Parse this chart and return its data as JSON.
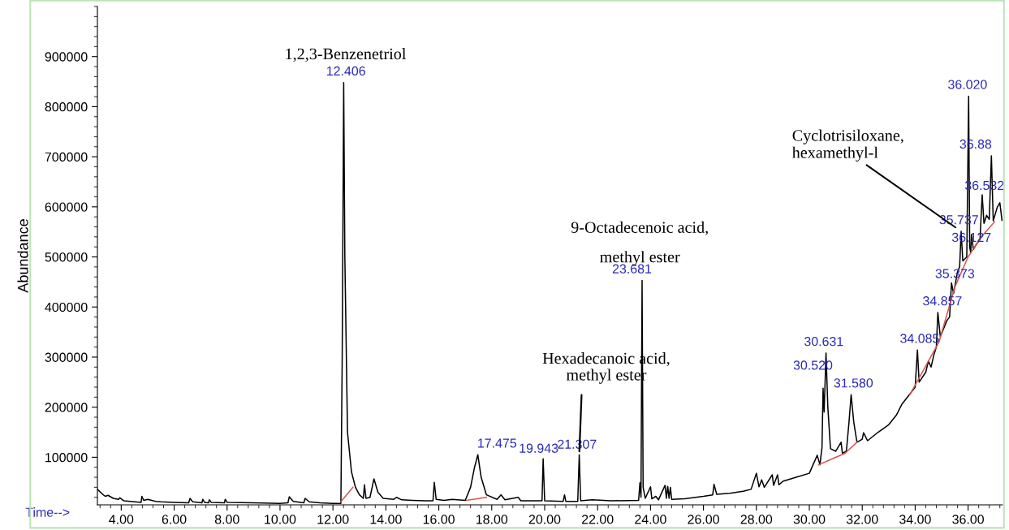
{
  "chart_data": {
    "type": "line",
    "xlabel": "Time-->",
    "ylabel": "Abundance",
    "xlim": [
      3.1,
      37.3
    ],
    "ylim": [
      5000,
      1000000
    ],
    "xticks": [
      {
        "value": 4,
        "label": "4.00"
      },
      {
        "value": 6,
        "label": "6.00"
      },
      {
        "value": 8,
        "label": "8.00"
      },
      {
        "value": 10,
        "label": "10.00"
      },
      {
        "value": 12,
        "label": "12.00"
      },
      {
        "value": 14,
        "label": "14.00"
      },
      {
        "value": 16,
        "label": "16.00"
      },
      {
        "value": 18,
        "label": "18.00"
      },
      {
        "value": 20,
        "label": "20.00"
      },
      {
        "value": 22,
        "label": "22.00"
      },
      {
        "value": 24,
        "label": "24.00"
      },
      {
        "value": 26,
        "label": "26.00"
      },
      {
        "value": 28,
        "label": "28.00"
      },
      {
        "value": 30,
        "label": "30.00"
      },
      {
        "value": 32,
        "label": "32.00"
      },
      {
        "value": 34,
        "label": "34.00"
      },
      {
        "value": 36,
        "label": "36.00"
      }
    ],
    "yticks": [
      100000,
      200000,
      300000,
      400000,
      500000,
      600000,
      700000,
      800000,
      900000
    ],
    "grid": false,
    "legend": false,
    "marker": "none",
    "line_style": "solid",
    "series": [
      {
        "color": "#000000",
        "x": [
          3.1,
          3.3,
          3.4,
          3.5,
          3.7,
          3.9,
          3.95,
          4.1,
          4.5,
          4.75,
          4.78,
          4.85,
          5.0,
          5.3,
          5.5,
          6.0,
          6.55,
          6.6,
          6.7,
          7.05,
          7.08,
          7.15,
          7.3,
          7.33,
          7.4,
          7.9,
          7.93,
          8.0,
          9.0,
          10.0,
          10.3,
          10.35,
          10.5,
          10.9,
          10.95,
          11.1,
          11.5,
          12.0,
          12.3,
          12.35,
          12.406,
          12.45,
          12.55,
          12.7,
          12.85,
          13.0,
          13.15,
          13.19,
          13.25,
          13.4,
          13.55,
          13.7,
          13.9,
          14.3,
          14.4,
          14.6,
          15.0,
          15.5,
          15.78,
          15.83,
          15.9,
          16.2,
          16.5,
          17.0,
          17.2,
          17.35,
          17.475,
          17.6,
          17.8,
          18.2,
          18.35,
          18.5,
          19.0,
          19.1,
          19.9,
          19.943,
          20.0,
          20.7,
          20.75,
          20.8,
          21.25,
          21.307,
          21.36,
          21.8,
          22.5,
          23.55,
          23.6,
          23.64,
          23.681,
          23.72,
          23.8,
          24.0,
          24.05,
          24.2,
          24.3,
          24.55,
          24.6,
          24.65,
          24.7,
          24.75,
          24.8,
          25.3,
          26.0,
          26.35,
          26.4,
          26.5,
          27.0,
          27.5,
          27.8,
          28.0,
          28.1,
          28.2,
          28.3,
          28.6,
          28.65,
          28.8,
          28.85,
          29.0,
          29.5,
          30.0,
          30.3,
          30.4,
          30.48,
          30.52,
          30.56,
          30.631,
          30.7,
          30.8,
          31.0,
          31.2,
          31.25,
          31.4,
          31.5,
          31.58,
          31.68,
          31.8,
          32.0,
          32.05,
          32.2,
          32.6,
          33.0,
          33.3,
          33.5,
          33.9,
          34.0,
          34.085,
          34.15,
          34.2,
          34.4,
          34.5,
          34.6,
          34.7,
          34.8,
          34.857,
          34.95,
          35.2,
          35.3,
          35.373,
          35.45,
          35.6,
          35.68,
          35.737,
          35.8,
          35.95,
          36.02,
          36.06,
          36.1,
          36.127,
          36.2,
          36.3,
          36.45,
          36.532,
          36.6,
          36.7,
          36.8,
          36.88,
          36.95,
          37.1,
          37.2,
          37.28
        ],
        "values": [
          36000,
          26000,
          22000,
          24000,
          18000,
          16000,
          19000,
          13000,
          11000,
          10000,
          22000,
          14000,
          16000,
          12000,
          11000,
          10000,
          9000,
          18000,
          11000,
          9000,
          16000,
          10000,
          9000,
          15000,
          10000,
          9000,
          16000,
          10000,
          9000,
          8000,
          9000,
          21000,
          12000,
          9000,
          18000,
          11000,
          9000,
          8000,
          8000,
          300000,
          848000,
          500000,
          150000,
          71000,
          40000,
          25000,
          18000,
          45000,
          18000,
          20000,
          57000,
          30000,
          18000,
          16000,
          20000,
          15000,
          14000,
          13000,
          13000,
          50000,
          16000,
          14000,
          16000,
          14000,
          40000,
          80000,
          105000,
          60000,
          25000,
          16000,
          25000,
          15000,
          20000,
          13000,
          13000,
          97000,
          13000,
          12000,
          25000,
          12000,
          12000,
          105000,
          13000,
          15000,
          13000,
          14000,
          49000,
          20000,
          453000,
          40000,
          18000,
          41000,
          17000,
          22000,
          15000,
          44000,
          18000,
          42000,
          18000,
          40000,
          16000,
          17000,
          22000,
          25000,
          46000,
          26000,
          28000,
          32000,
          36000,
          68000,
          41000,
          55000,
          40000,
          65000,
          44000,
          65000,
          45000,
          52000,
          60000,
          68000,
          104000,
          85000,
          120000,
          238000,
          190000,
          308000,
          200000,
          117000,
          112000,
          130000,
          108000,
          112000,
          170000,
          225000,
          170000,
          130000,
          136000,
          149000,
          133000,
          150000,
          165000,
          185000,
          206000,
          233000,
          240000,
          314000,
          250000,
          254000,
          270000,
          292000,
          280000,
          303000,
          320000,
          389000,
          341000,
          373000,
          380000,
          448000,
          427000,
          470000,
          480000,
          551000,
          492000,
          500000,
          821000,
          520000,
          508000,
          545000,
          515000,
          524000,
          535000,
          624000,
          567000,
          583000,
          575000,
          702000,
          572000,
          599000,
          608000,
          573000
        ]
      },
      {
        "color": "#d9534f",
        "x": [
          12.3,
          12.75,
          12.8,
          17.05,
          17.8,
          17.9,
          30.35,
          31.35,
          31.8,
          31.9,
          33.8,
          34.9,
          35.5,
          36.0,
          36.5,
          37.0
        ],
        "values": [
          11000,
          40000,
          null,
          14000,
          20000,
          null,
          85000,
          108000,
          130000,
          null,
          225000,
          330000,
          440000,
          500000,
          540000,
          570000
        ]
      }
    ],
    "annotations": [
      {
        "text": "12.406",
        "x": 12.406,
        "y": 848000
      },
      {
        "text": "17.475",
        "x": 17.475,
        "y": 105000
      },
      {
        "text": "19.943",
        "x": 19.943,
        "y": 97000
      },
      {
        "text": "21.307",
        "x": 21.307,
        "y": 105000
      },
      {
        "text": "23.681",
        "x": 23.681,
        "y": 453000
      },
      {
        "text": "30.520",
        "x": 30.52,
        "y": 238000
      },
      {
        "text": "30.631",
        "x": 30.631,
        "y": 308000
      },
      {
        "text": "31.580",
        "x": 31.58,
        "y": 225000
      },
      {
        "text": "34.085",
        "x": 34.085,
        "y": 314000
      },
      {
        "text": "34.857",
        "x": 34.857,
        "y": 389000
      },
      {
        "text": "35.373",
        "x": 35.373,
        "y": 448000
      },
      {
        "text": "35.737",
        "x": 35.737,
        "y": 551000
      },
      {
        "text": "36.020",
        "x": 36.02,
        "y": 821000
      },
      {
        "text": "36.127",
        "x": 36.127,
        "y": 545000
      },
      {
        "text": "36.532",
        "x": 36.532,
        "y": 624000
      },
      {
        "text": "36.88",
        "x": 36.88,
        "y": 702000
      },
      "1,2,3-Benzenetriol",
      {
        "text": "Hexadecanoic acid,\nmethyl ester",
        "x": 21.307,
        "y": 105000
      },
      {
        "text": "9-Octadecenoic acid,\nmethyl ester",
        "x": 23.681,
        "y": 453000
      },
      {
        "text": "Cyclotrisiloxane,\nhexamethyl-l",
        "x": 35.737,
        "y": 551000
      }
    ]
  }
}
